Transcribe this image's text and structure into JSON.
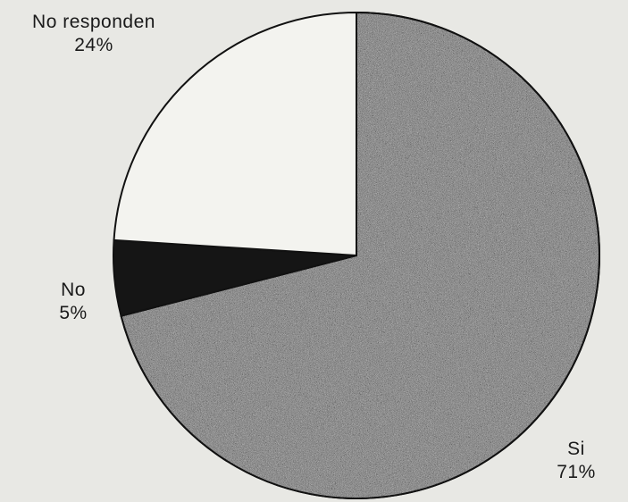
{
  "colors": {
    "background": "#e8e8e4",
    "outline": "#111111",
    "slice_si": "#6f6f6f",
    "slice_no": "#151515",
    "slice_no_responden": "#f3f3ef"
  },
  "chart_data": {
    "type": "pie",
    "title": "",
    "start_angle_deg": 0,
    "direction": "clockwise",
    "labels_visible": true,
    "slices": [
      {
        "label": "Si",
        "value": 71,
        "value_label": "71%",
        "texture": "speckled-gray"
      },
      {
        "label": "No",
        "value": 5,
        "value_label": "5%",
        "texture": "solid-black"
      },
      {
        "label": "No responden",
        "value": 24,
        "value_label": "24%",
        "texture": "solid-white"
      }
    ]
  }
}
